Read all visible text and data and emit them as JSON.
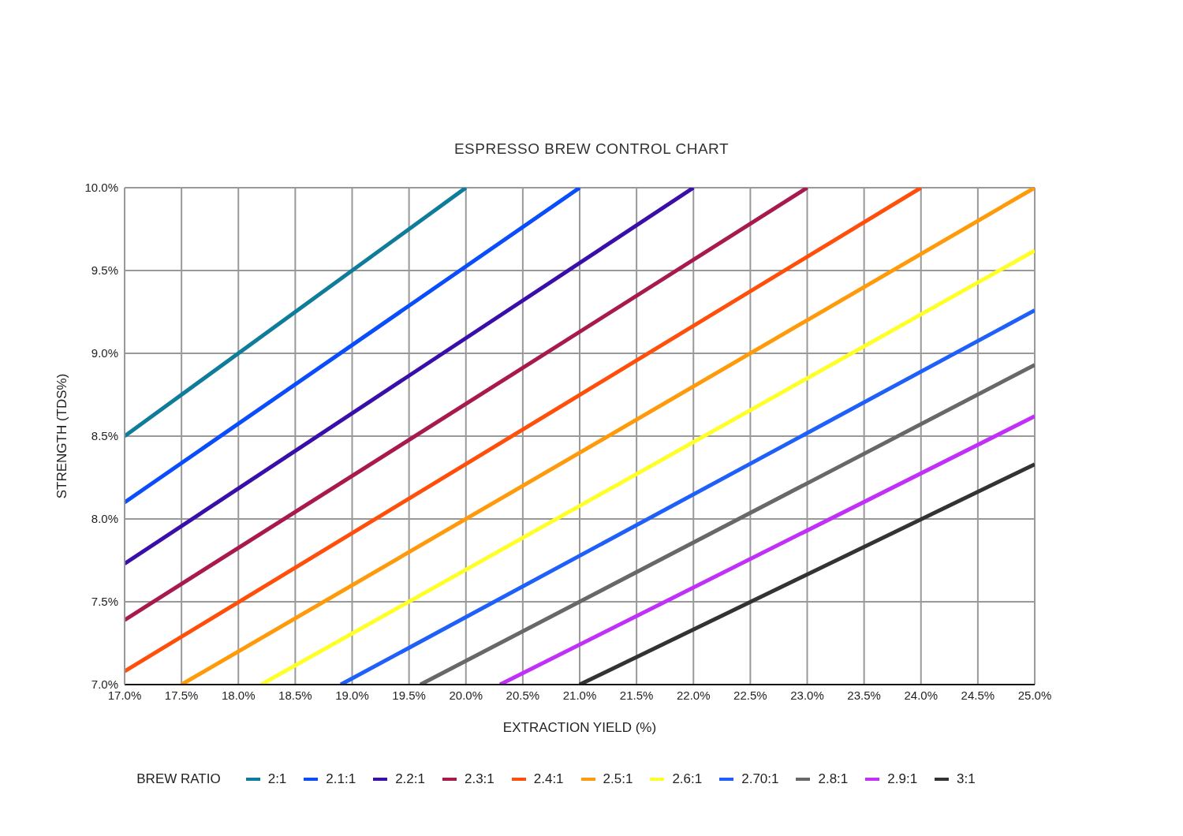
{
  "chart_data": {
    "type": "line",
    "title": "ESPRESSO BREW CONTROL CHART",
    "xlabel": "EXTRACTION YIELD (%)",
    "ylabel": "STRENGTH (TDS%)",
    "legend_title": "BREW RATIO",
    "xlim": [
      17.0,
      25.0
    ],
    "xticks": [
      {
        "value": 17.0,
        "label": "17.0%"
      },
      {
        "value": 17.5,
        "label": "17.5%"
      },
      {
        "value": 18.0,
        "label": "18.0%"
      },
      {
        "value": 18.5,
        "label": "18.5%"
      },
      {
        "value": 19.0,
        "label": "19.0%"
      },
      {
        "value": 19.5,
        "label": "19.5%"
      },
      {
        "value": 20.0,
        "label": "20.0%"
      },
      {
        "value": 20.5,
        "label": "20.5%"
      },
      {
        "value": 21.0,
        "label": "21.0%"
      },
      {
        "value": 21.5,
        "label": "21.5%"
      },
      {
        "value": 22.0,
        "label": "22.0%"
      },
      {
        "value": 22.5,
        "label": "22.5%"
      },
      {
        "value": 23.0,
        "label": "23.0%"
      },
      {
        "value": 23.5,
        "label": "23.5%"
      },
      {
        "value": 24.0,
        "label": "24.0%"
      },
      {
        "value": 24.5,
        "label": "24.5%"
      },
      {
        "value": 25.0,
        "label": "25.0%"
      }
    ],
    "ylim": [
      7.0,
      10.0
    ],
    "yticks": [
      {
        "value": 7.0,
        "label": "7.0%"
      },
      {
        "value": 7.5,
        "label": "7.5%"
      },
      {
        "value": 8.0,
        "label": "8.0%"
      },
      {
        "value": 8.5,
        "label": "8.5%"
      },
      {
        "value": 9.0,
        "label": "9.0%"
      },
      {
        "value": 9.5,
        "label": "9.5%"
      },
      {
        "value": 10.0,
        "label": "10.0%"
      }
    ],
    "grid": true,
    "legend": "bottom",
    "marker": "none",
    "line_style": "solid",
    "series": [
      {
        "name": "2:1",
        "color": "#0e7c9a",
        "x": [
          17.0,
          20.0
        ],
        "values": [
          8.5,
          10.0
        ]
      },
      {
        "name": "2.1:1",
        "color": "#0a4dfa",
        "x": [
          17.0,
          21.0
        ],
        "values": [
          8.1,
          10.0
        ]
      },
      {
        "name": "2.2:1",
        "color": "#3a0ea8",
        "x": [
          17.0,
          22.0
        ],
        "values": [
          7.73,
          10.0
        ]
      },
      {
        "name": "2.3:1",
        "color": "#a81a4e",
        "x": [
          17.0,
          23.0
        ],
        "values": [
          7.39,
          10.0
        ]
      },
      {
        "name": "2.4:1",
        "color": "#ff4f0a",
        "x": [
          17.0,
          24.0
        ],
        "values": [
          7.08,
          10.0
        ]
      },
      {
        "name": "2.5:1",
        "color": "#ff9a0a",
        "x": [
          17.5,
          25.0
        ],
        "values": [
          7.0,
          10.0
        ]
      },
      {
        "name": "2.6:1",
        "color": "#ffff2a",
        "x": [
          18.2,
          25.0
        ],
        "values": [
          7.0,
          9.62
        ]
      },
      {
        "name": "2.70:1",
        "color": "#2060fa",
        "x": [
          18.9,
          25.0
        ],
        "values": [
          7.0,
          9.26
        ]
      },
      {
        "name": "2.8:1",
        "color": "#686868",
        "x": [
          19.6,
          25.0
        ],
        "values": [
          7.0,
          8.93
        ]
      },
      {
        "name": "2.9:1",
        "color": "#c030f8",
        "x": [
          20.3,
          25.0
        ],
        "values": [
          7.0,
          8.62
        ]
      },
      {
        "name": "3:1",
        "color": "#333333",
        "x": [
          21.0,
          25.0
        ],
        "values": [
          7.0,
          8.33
        ]
      }
    ]
  }
}
